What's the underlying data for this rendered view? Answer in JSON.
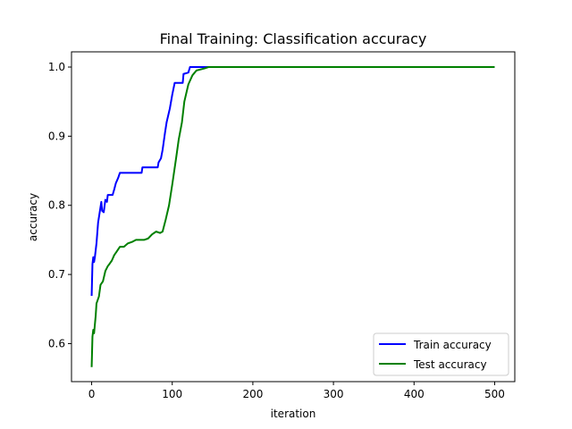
{
  "chart_data": {
    "type": "line",
    "title": "Final Training: Classification accuracy",
    "xlabel": "iteration",
    "ylabel": "accuracy",
    "xlim": [
      -25,
      525
    ],
    "ylim": [
      0.545,
      1.022
    ],
    "xticks": [
      0,
      100,
      200,
      300,
      400,
      500
    ],
    "xtick_labels": [
      "0",
      "100",
      "200",
      "300",
      "400",
      "500"
    ],
    "yticks": [
      0.6,
      0.7,
      0.8,
      0.9,
      1.0
    ],
    "ytick_labels": [
      "0.6",
      "0.7",
      "0.8",
      "0.9",
      "1.0"
    ],
    "grid": false,
    "legend_position": "lower right",
    "series": [
      {
        "name": "Train accuracy",
        "color": "#0000ff",
        "points": [
          [
            0,
            0.669
          ],
          [
            1,
            0.715
          ],
          [
            2,
            0.725
          ],
          [
            3,
            0.718
          ],
          [
            4,
            0.725
          ],
          [
            6,
            0.745
          ],
          [
            8,
            0.775
          ],
          [
            10,
            0.79
          ],
          [
            12,
            0.805
          ],
          [
            13,
            0.792
          ],
          [
            15,
            0.79
          ],
          [
            17,
            0.808
          ],
          [
            19,
            0.805
          ],
          [
            20,
            0.815
          ],
          [
            26,
            0.815
          ],
          [
            28,
            0.823
          ],
          [
            30,
            0.832
          ],
          [
            33,
            0.84
          ],
          [
            35,
            0.847
          ],
          [
            62,
            0.847
          ],
          [
            63,
            0.855
          ],
          [
            82,
            0.855
          ],
          [
            83,
            0.862
          ],
          [
            86,
            0.868
          ],
          [
            88,
            0.88
          ],
          [
            91,
            0.905
          ],
          [
            93,
            0.92
          ],
          [
            97,
            0.94
          ],
          [
            100,
            0.96
          ],
          [
            103,
            0.977
          ],
          [
            113,
            0.977
          ],
          [
            114,
            0.99
          ],
          [
            120,
            0.992
          ],
          [
            122,
            1.0
          ],
          [
            500,
            1.0
          ]
        ]
      },
      {
        "name": "Test accuracy",
        "color": "#008000",
        "points": [
          [
            0,
            0.566
          ],
          [
            1,
            0.61
          ],
          [
            2,
            0.62
          ],
          [
            3,
            0.615
          ],
          [
            5,
            0.64
          ],
          [
            6,
            0.658
          ],
          [
            9,
            0.668
          ],
          [
            11,
            0.685
          ],
          [
            14,
            0.69
          ],
          [
            17,
            0.705
          ],
          [
            20,
            0.712
          ],
          [
            22,
            0.715
          ],
          [
            25,
            0.72
          ],
          [
            28,
            0.728
          ],
          [
            31,
            0.733
          ],
          [
            35,
            0.74
          ],
          [
            40,
            0.74
          ],
          [
            45,
            0.745
          ],
          [
            50,
            0.747
          ],
          [
            55,
            0.75
          ],
          [
            65,
            0.75
          ],
          [
            70,
            0.752
          ],
          [
            75,
            0.758
          ],
          [
            80,
            0.762
          ],
          [
            85,
            0.76
          ],
          [
            88,
            0.762
          ],
          [
            92,
            0.78
          ],
          [
            96,
            0.8
          ],
          [
            100,
            0.83
          ],
          [
            105,
            0.87
          ],
          [
            108,
            0.895
          ],
          [
            112,
            0.92
          ],
          [
            115,
            0.95
          ],
          [
            120,
            0.975
          ],
          [
            125,
            0.988
          ],
          [
            130,
            0.995
          ],
          [
            140,
            0.998
          ],
          [
            145,
            1.0
          ],
          [
            500,
            1.0
          ]
        ]
      }
    ]
  }
}
